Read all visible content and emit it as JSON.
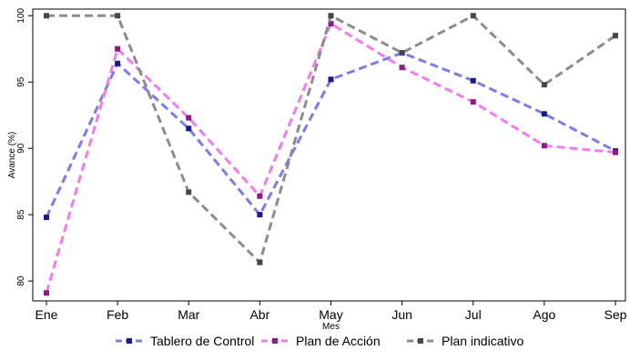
{
  "chart_data": {
    "type": "line",
    "title": "",
    "xlabel": "Mes",
    "ylabel": "Avance (%)",
    "categories": [
      "Ene",
      "Feb",
      "Mar",
      "Abr",
      "May",
      "Jun",
      "Jul",
      "Ago",
      "Sep"
    ],
    "ylim": [
      78.5,
      100.5
    ],
    "yticks": [
      "80",
      "85",
      "90",
      "95",
      "100"
    ],
    "grid": false,
    "legend_position": "bottom",
    "series": [
      {
        "name": "Tablero de Control",
        "line_color": "#7b7bf2",
        "marker_color": "#1a1a8c",
        "values": [
          84.8,
          96.4,
          91.5,
          85.0,
          95.2,
          97.2,
          95.1,
          92.6,
          89.8
        ]
      },
      {
        "name": "Plan de Acción",
        "line_color": "#f47af4",
        "marker_color": "#8b1a8b",
        "values": [
          79.1,
          97.5,
          92.3,
          86.4,
          99.4,
          96.1,
          93.5,
          90.2,
          89.7
        ]
      },
      {
        "name": "Plan indicativo",
        "line_color": "#8c8c8c",
        "marker_color": "#474747",
        "values": [
          100.0,
          100.0,
          86.7,
          81.4,
          100.0,
          97.2,
          100.0,
          94.8,
          98.5
        ]
      }
    ]
  }
}
